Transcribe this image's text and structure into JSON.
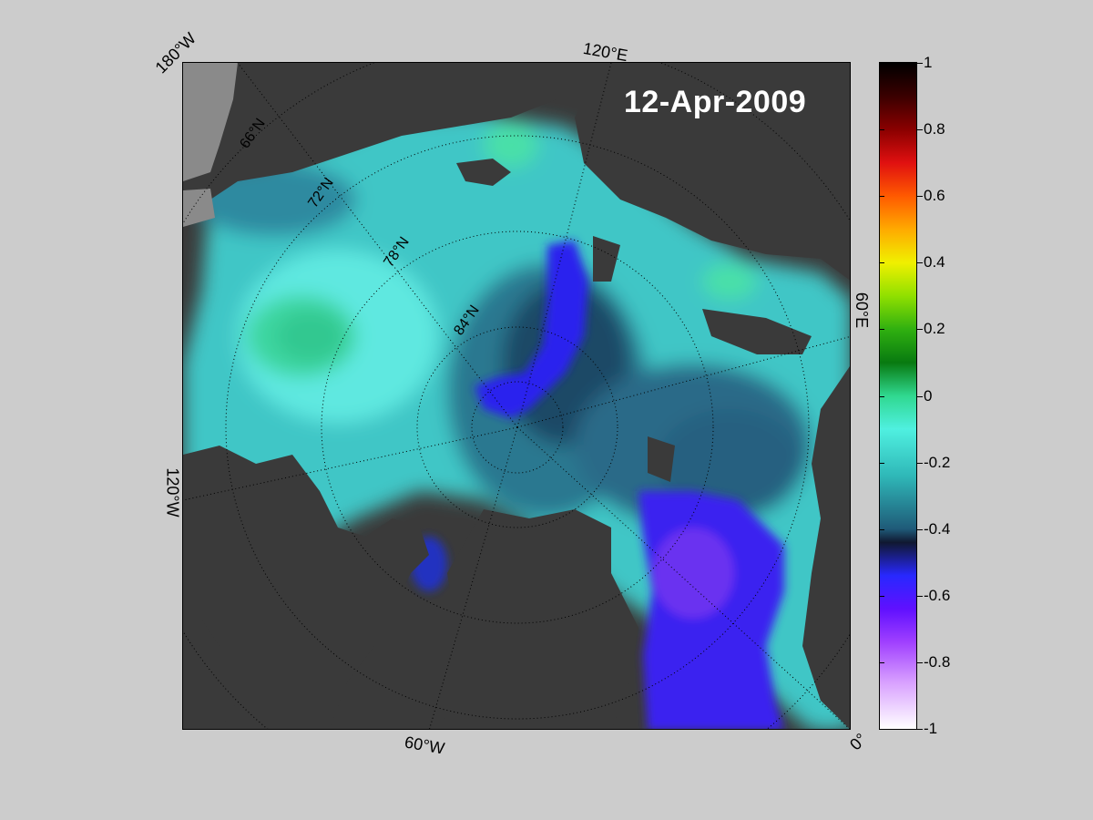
{
  "date": "12-Apr-2009",
  "longitude_labels": {
    "lon_180w": "180°W",
    "lon_120e": "120°E",
    "lon_60e": "60°E",
    "lon_120w": "120°W",
    "lon_60w": "60°W",
    "lon_0": "0°"
  },
  "latitude_labels": [
    "66°N",
    "72°N",
    "78°N",
    "84°N"
  ],
  "colorbar": {
    "min": -1,
    "max": 1,
    "ticks": [
      "1",
      "0.8",
      "0.6",
      "0.4",
      "0.2",
      "0",
      "-0.2",
      "-0.4",
      "-0.6",
      "-0.8",
      "-1"
    ],
    "colors": [
      "#000000",
      "#8a0000",
      "#ff5a00",
      "#f0f000",
      "#30b010",
      "#30d890",
      "#4ff0e0",
      "#1f5a78",
      "#2828ff",
      "#a040ff",
      "#ffffff"
    ]
  },
  "land_color": "#3a3a3a",
  "ocean_base_color": "#40c8c8"
}
